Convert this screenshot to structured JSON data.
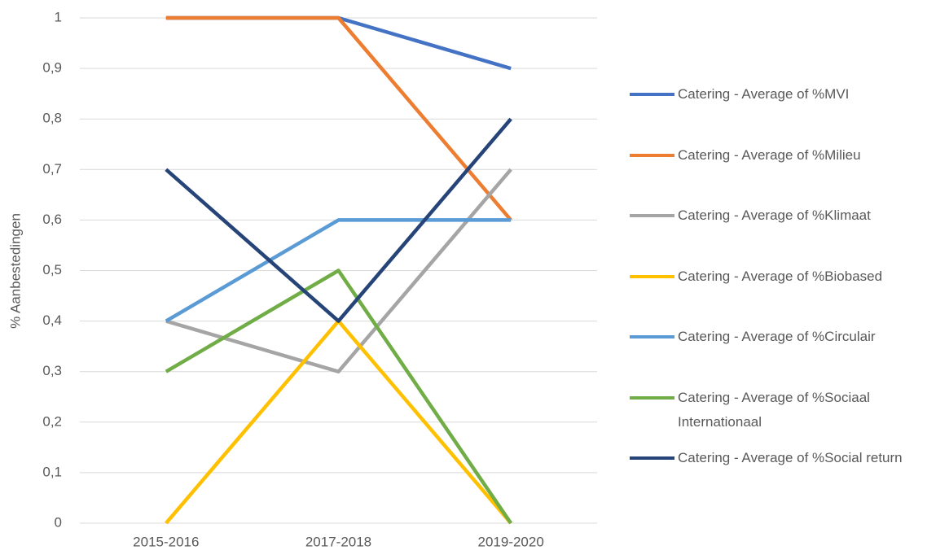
{
  "chart_data": {
    "type": "line",
    "y_label": "% Aanbestedingen",
    "categories": [
      "2015-2016",
      "2017-2018",
      "2019-2020"
    ],
    "series": [
      {
        "name": "Catering - Average of %MVI",
        "color": "#4472c4",
        "values": [
          1,
          1,
          0.9
        ]
      },
      {
        "name": "Catering - Average of %Milieu",
        "color": "#ed7d31",
        "values": [
          1,
          1,
          0.6
        ]
      },
      {
        "name": "Catering - Average of %Klimaat",
        "color": "#a5a5a5",
        "values": [
          0.4,
          0.3,
          0.7
        ]
      },
      {
        "name": "Catering - Average of %Biobased",
        "color": "#ffc000",
        "values": [
          0,
          0.4,
          0
        ]
      },
      {
        "name": "Catering - Average of %Circulair",
        "color": "#5b9bd5",
        "values": [
          0.4,
          0.6,
          0.6
        ]
      },
      {
        "name": "Catering - Average of %Sociaal Internationaal",
        "color": "#70ad47",
        "values": [
          0.3,
          0.5,
          0
        ]
      },
      {
        "name": "Catering - Average of %Social return",
        "color": "#264478",
        "values": [
          0.7,
          0.4,
          0.8
        ]
      }
    ],
    "ylim": [
      0,
      1
    ],
    "yticks": [
      0,
      {
        "value": 0.1,
        "label": "0,1"
      },
      {
        "value": 0.2,
        "label": "0,2"
      },
      {
        "value": 0.3,
        "label": "0,3"
      },
      {
        "value": 0.4,
        "label": "0,4"
      },
      {
        "value": 0.5,
        "label": "0,5"
      },
      {
        "value": 0.6,
        "label": "0,6"
      },
      {
        "value": 0.7,
        "label": "0,7"
      },
      {
        "value": 0.8,
        "label": "0,8"
      },
      {
        "value": 0.9,
        "label": "0,9"
      },
      1
    ],
    "grid": true,
    "legend": "right"
  }
}
